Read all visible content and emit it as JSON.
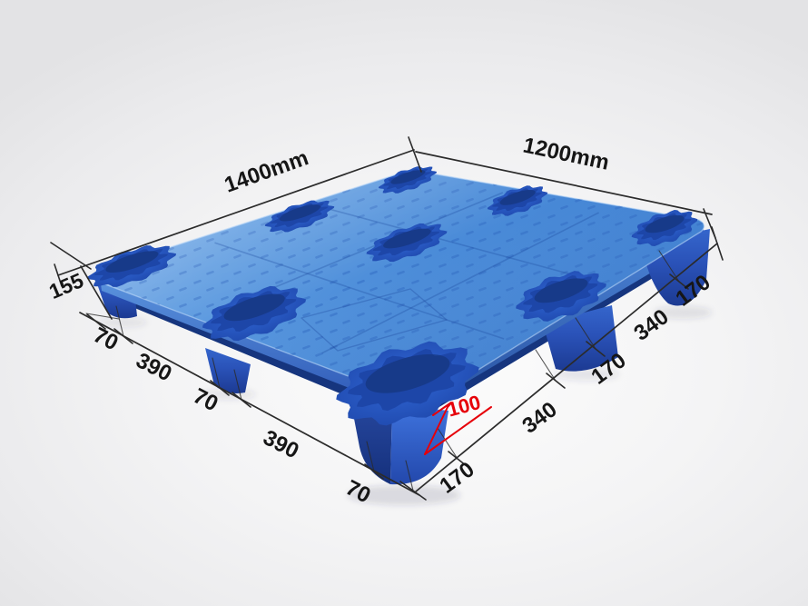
{
  "subject": {
    "description": "Blue plastic nestable pallet with nine nesting pockets, shown in isometric product view with dimension annotations"
  },
  "annotations": {
    "length": "1400mm",
    "width": "1200mm",
    "total_height": "155",
    "foot_height": "100",
    "long_edge_segments": [
      "70",
      "390",
      "70",
      "390",
      "70"
    ],
    "short_edge_segments": [
      "170",
      "340",
      "170",
      "340",
      "170"
    ]
  },
  "colors": {
    "deck_blue": "#4f8ed9",
    "pocket_blue": "#1d46a8",
    "foot_blue": "#2a52b8",
    "dimension_line": "#2b2b2b",
    "text_ink": "#161616",
    "accent_red": "#e60009",
    "background": "#f0f0f2"
  }
}
